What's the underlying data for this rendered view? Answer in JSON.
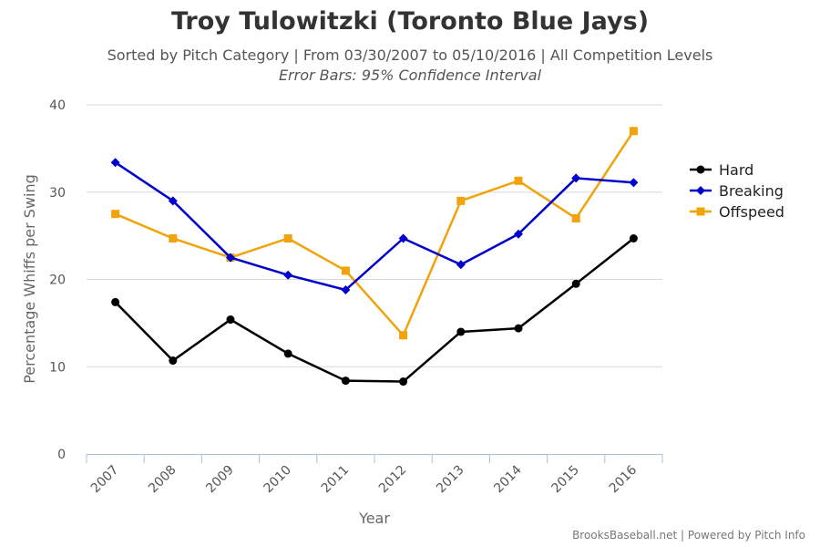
{
  "chart_data": {
    "type": "line",
    "title": "Troy Tulowitzki (Toronto Blue Jays)",
    "subtitle": "Sorted by Pitch Category | From 03/30/2007 to 05/10/2016 | All Competition Levels",
    "subtitle2": "Error Bars: 95% Confidence Interval",
    "xlabel": "Year",
    "ylabel": "Percentage Whiffs per Swing",
    "ylim": [
      0,
      40
    ],
    "yticks": [
      "0",
      "10",
      "20",
      "30",
      "40"
    ],
    "categories": [
      "2007",
      "2008",
      "2009",
      "2010",
      "2011",
      "2012",
      "2013",
      "2014",
      "2015",
      "2016"
    ],
    "grid": true,
    "legend_position": "right",
    "series": [
      {
        "name": "Hard",
        "color": "#000000",
        "marker": "circle",
        "values": [
          17.4,
          10.7,
          15.4,
          11.5,
          8.4,
          8.3,
          14.0,
          14.4,
          19.5,
          24.7
        ]
      },
      {
        "name": "Breaking",
        "color": "#0000cc",
        "marker": "diamond",
        "values": [
          33.4,
          29.0,
          22.5,
          20.5,
          18.8,
          24.7,
          21.7,
          25.2,
          31.6,
          31.1
        ]
      },
      {
        "name": "Offspeed",
        "color": "#f0a30a",
        "marker": "square",
        "values": [
          27.5,
          24.7,
          22.5,
          24.7,
          21.0,
          13.6,
          29.0,
          31.3,
          27.0,
          37.0
        ]
      }
    ]
  },
  "credits": "BrooksBaseball.net | Powered by Pitch Info"
}
